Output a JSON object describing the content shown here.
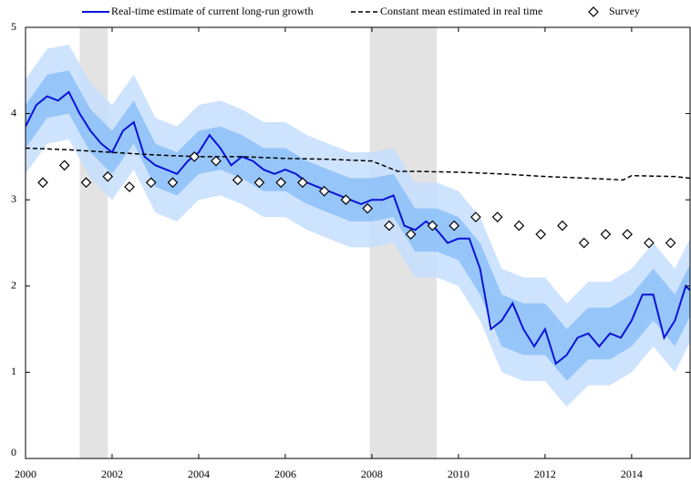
{
  "chart_data": {
    "type": "line",
    "xlim": [
      2000,
      2015.35
    ],
    "ylim": [
      0,
      5
    ],
    "xticks": [
      2000,
      2002,
      2004,
      2006,
      2008,
      2010,
      2012,
      2014
    ],
    "yticks": [
      0,
      1,
      2,
      3,
      4,
      5
    ],
    "shaded_regions": [
      [
        2001.25,
        2001.9
      ],
      [
        2007.95,
        2009.5
      ]
    ],
    "shade_color": "#e3e3e3",
    "bands": [
      {
        "color": "#c6defd",
        "x": [
          2000.0,
          2000.5,
          2001.0,
          2001.5,
          2002.0,
          2002.5,
          2003.0,
          2003.5,
          2004.0,
          2004.5,
          2005.0,
          2005.5,
          2006.0,
          2006.5,
          2007.0,
          2007.5,
          2008.0,
          2008.5,
          2009.0,
          2009.5,
          2010.0,
          2010.5,
          2011.0,
          2011.5,
          2012.0,
          2012.5,
          2013.0,
          2013.5,
          2014.0,
          2014.5,
          2015.0,
          2015.35
        ],
        "lower": [
          3.3,
          3.65,
          3.7,
          3.25,
          3.0,
          3.35,
          2.85,
          2.75,
          3.0,
          3.05,
          2.95,
          2.8,
          2.8,
          2.65,
          2.55,
          2.45,
          2.45,
          2.5,
          2.1,
          2.1,
          2.0,
          1.6,
          1.0,
          0.9,
          0.9,
          0.6,
          0.85,
          0.85,
          1.0,
          1.3,
          1.0,
          1.35
        ],
        "upper": [
          4.4,
          4.75,
          4.8,
          4.35,
          4.1,
          4.45,
          3.95,
          3.85,
          4.1,
          4.15,
          4.05,
          3.9,
          3.9,
          3.75,
          3.65,
          3.55,
          3.55,
          3.6,
          3.2,
          3.2,
          3.1,
          2.8,
          2.2,
          2.1,
          2.1,
          1.8,
          2.05,
          2.05,
          2.2,
          2.5,
          2.2,
          2.55
        ]
      },
      {
        "color": "#8cc0f8",
        "x": [
          2000.0,
          2000.5,
          2001.0,
          2001.5,
          2002.0,
          2002.5,
          2003.0,
          2003.5,
          2004.0,
          2004.5,
          2005.0,
          2005.5,
          2006.0,
          2006.5,
          2007.0,
          2007.5,
          2008.0,
          2008.5,
          2009.0,
          2009.5,
          2010.0,
          2010.5,
          2011.0,
          2011.5,
          2012.0,
          2012.5,
          2013.0,
          2013.5,
          2014.0,
          2014.5,
          2015.0,
          2015.35
        ],
        "lower": [
          3.6,
          3.95,
          4.0,
          3.55,
          3.3,
          3.65,
          3.15,
          3.05,
          3.3,
          3.35,
          3.25,
          3.1,
          3.1,
          2.95,
          2.85,
          2.75,
          2.75,
          2.8,
          2.4,
          2.4,
          2.3,
          1.9,
          1.3,
          1.2,
          1.2,
          0.9,
          1.15,
          1.15,
          1.3,
          1.6,
          1.3,
          1.65
        ],
        "upper": [
          4.1,
          4.45,
          4.5,
          4.05,
          3.8,
          4.15,
          3.65,
          3.55,
          3.8,
          3.85,
          3.75,
          3.6,
          3.6,
          3.45,
          3.35,
          3.25,
          3.25,
          3.3,
          2.9,
          2.9,
          2.8,
          2.5,
          1.9,
          1.8,
          1.8,
          1.5,
          1.75,
          1.75,
          1.9,
          2.2,
          1.9,
          2.25
        ]
      }
    ],
    "series": [
      {
        "name": "Real-time estimate of current long-run growth",
        "style": "solid",
        "color": "#0a14d6",
        "x": [
          2000.0,
          2000.25,
          2000.5,
          2000.75,
          2001.0,
          2001.25,
          2001.5,
          2001.75,
          2002.0,
          2002.25,
          2002.5,
          2002.75,
          2003.0,
          2003.25,
          2003.5,
          2003.75,
          2004.0,
          2004.25,
          2004.5,
          2004.75,
          2005.0,
          2005.25,
          2005.5,
          2005.75,
          2006.0,
          2006.25,
          2006.5,
          2006.75,
          2007.0,
          2007.25,
          2007.5,
          2007.75,
          2008.0,
          2008.25,
          2008.5,
          2008.75,
          2009.0,
          2009.25,
          2009.5,
          2009.75,
          2010.0,
          2010.25,
          2010.5,
          2010.75,
          2011.0,
          2011.25,
          2011.5,
          2011.75,
          2012.0,
          2012.25,
          2012.5,
          2012.75,
          2013.0,
          2013.25,
          2013.5,
          2013.75,
          2014.0,
          2014.25,
          2014.5,
          2014.75,
          2015.0,
          2015.25,
          2015.35
        ],
        "values": [
          3.85,
          4.1,
          4.2,
          4.15,
          4.25,
          4.0,
          3.8,
          3.65,
          3.55,
          3.8,
          3.9,
          3.5,
          3.4,
          3.35,
          3.3,
          3.45,
          3.55,
          3.75,
          3.6,
          3.4,
          3.5,
          3.45,
          3.35,
          3.3,
          3.35,
          3.3,
          3.2,
          3.15,
          3.1,
          3.05,
          3.0,
          2.95,
          3.0,
          3.0,
          3.05,
          2.7,
          2.65,
          2.75,
          2.65,
          2.5,
          2.55,
          2.55,
          2.2,
          1.5,
          1.6,
          1.8,
          1.5,
          1.3,
          1.5,
          1.1,
          1.2,
          1.4,
          1.45,
          1.3,
          1.45,
          1.4,
          1.6,
          1.9,
          1.9,
          1.4,
          1.6,
          2.0,
          1.95
        ]
      },
      {
        "name": "Constant mean estimated in real time",
        "style": "dashed",
        "color": "#000000",
        "x": [
          2000,
          2001,
          2002,
          2003,
          2004,
          2005,
          2006,
          2007,
          2008.0,
          2008.6,
          2009,
          2010,
          2011,
          2012,
          2013,
          2013.8,
          2014,
          2015,
          2015.35
        ],
        "values": [
          3.6,
          3.58,
          3.55,
          3.52,
          3.5,
          3.5,
          3.48,
          3.47,
          3.45,
          3.33,
          3.33,
          3.32,
          3.3,
          3.27,
          3.25,
          3.23,
          3.28,
          3.27,
          3.25
        ]
      },
      {
        "name": "Survey",
        "style": "diamond",
        "color": "#000000",
        "x": [
          2000.4,
          2000.9,
          2001.4,
          2001.9,
          2002.4,
          2002.9,
          2003.4,
          2003.9,
          2004.4,
          2004.9,
          2005.4,
          2005.9,
          2006.4,
          2006.9,
          2007.4,
          2007.9,
          2008.4,
          2008.9,
          2009.4,
          2009.9,
          2010.4,
          2010.9,
          2011.4,
          2011.9,
          2012.4,
          2012.9,
          2013.4,
          2013.9,
          2014.4,
          2014.9
        ],
        "values": [
          3.2,
          3.4,
          3.2,
          3.27,
          3.15,
          3.2,
          3.2,
          3.5,
          3.45,
          3.23,
          3.2,
          3.2,
          3.2,
          3.1,
          3.0,
          2.9,
          2.7,
          2.6,
          2.7,
          2.7,
          2.8,
          2.8,
          2.7,
          2.6,
          2.7,
          2.5,
          2.6,
          2.6,
          2.5,
          2.5
        ]
      }
    ]
  }
}
